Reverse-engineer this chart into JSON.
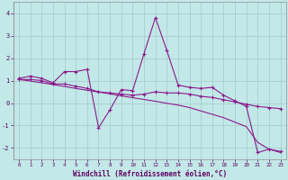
{
  "background_color": "#c2e8e8",
  "grid_color": "#a8d0d0",
  "line_color": "#8b1a8b",
  "xlabel": "Windchill (Refroidissement éolien,°C)",
  "xlim": [
    -0.5,
    23.5
  ],
  "ylim": [
    -2.5,
    4.5
  ],
  "yticks": [
    -2,
    -1,
    0,
    1,
    2,
    3,
    4
  ],
  "xticks": [
    0,
    1,
    2,
    3,
    4,
    5,
    6,
    7,
    8,
    9,
    10,
    11,
    12,
    13,
    14,
    15,
    16,
    17,
    18,
    19,
    20,
    21,
    22,
    23
  ],
  "series1_x": [
    0,
    1,
    2,
    3,
    4,
    5,
    6,
    7,
    8,
    9,
    10,
    11,
    12,
    13,
    14,
    15,
    16,
    17,
    18,
    19,
    20,
    21,
    22,
    23
  ],
  "series1_y": [
    1.1,
    1.2,
    1.1,
    0.9,
    1.4,
    1.4,
    1.5,
    -1.1,
    -0.3,
    0.6,
    0.55,
    2.2,
    3.8,
    2.35,
    0.8,
    0.7,
    0.65,
    0.7,
    0.35,
    0.1,
    -0.15,
    -2.2,
    -2.05,
    -2.15
  ],
  "series2_x": [
    0,
    1,
    2,
    3,
    4,
    5,
    6,
    7,
    8,
    9,
    10,
    11,
    12,
    13,
    14,
    15,
    16,
    17,
    18,
    19,
    20,
    21,
    22,
    23
  ],
  "series2_y": [
    1.05,
    1.05,
    1.0,
    0.85,
    0.85,
    0.75,
    0.65,
    0.5,
    0.45,
    0.4,
    0.35,
    0.4,
    0.5,
    0.45,
    0.45,
    0.4,
    0.3,
    0.25,
    0.15,
    0.05,
    -0.05,
    -0.15,
    -0.2,
    -0.25
  ],
  "series3_x": [
    0,
    1,
    2,
    3,
    4,
    5,
    6,
    7,
    8,
    9,
    10,
    11,
    12,
    13,
    14,
    15,
    16,
    17,
    18,
    19,
    20,
    21,
    22,
    23
  ],
  "series3_y": [
    1.05,
    0.98,
    0.9,
    0.82,
    0.74,
    0.65,
    0.57,
    0.49,
    0.41,
    0.32,
    0.24,
    0.16,
    0.08,
    -0.01,
    -0.09,
    -0.2,
    -0.35,
    -0.5,
    -0.65,
    -0.85,
    -1.05,
    -1.75,
    -2.05,
    -2.2
  ]
}
